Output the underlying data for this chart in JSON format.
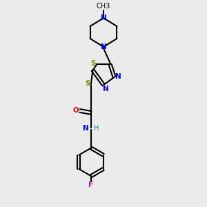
{
  "bg_color": "#ebebeb",
  "bond_color": "#000000",
  "N_color": "#0000ee",
  "S_color": "#888800",
  "O_color": "#dd0000",
  "F_color": "#cc00cc",
  "H_color": "#008888",
  "line_width": 1.5,
  "fig_size": [
    3.0,
    3.0
  ],
  "dpi": 100,
  "methyl_label": "CH3",
  "S_label": "S",
  "N_label": "N",
  "O_label": "O",
  "F_label": "F",
  "H_label": "H"
}
